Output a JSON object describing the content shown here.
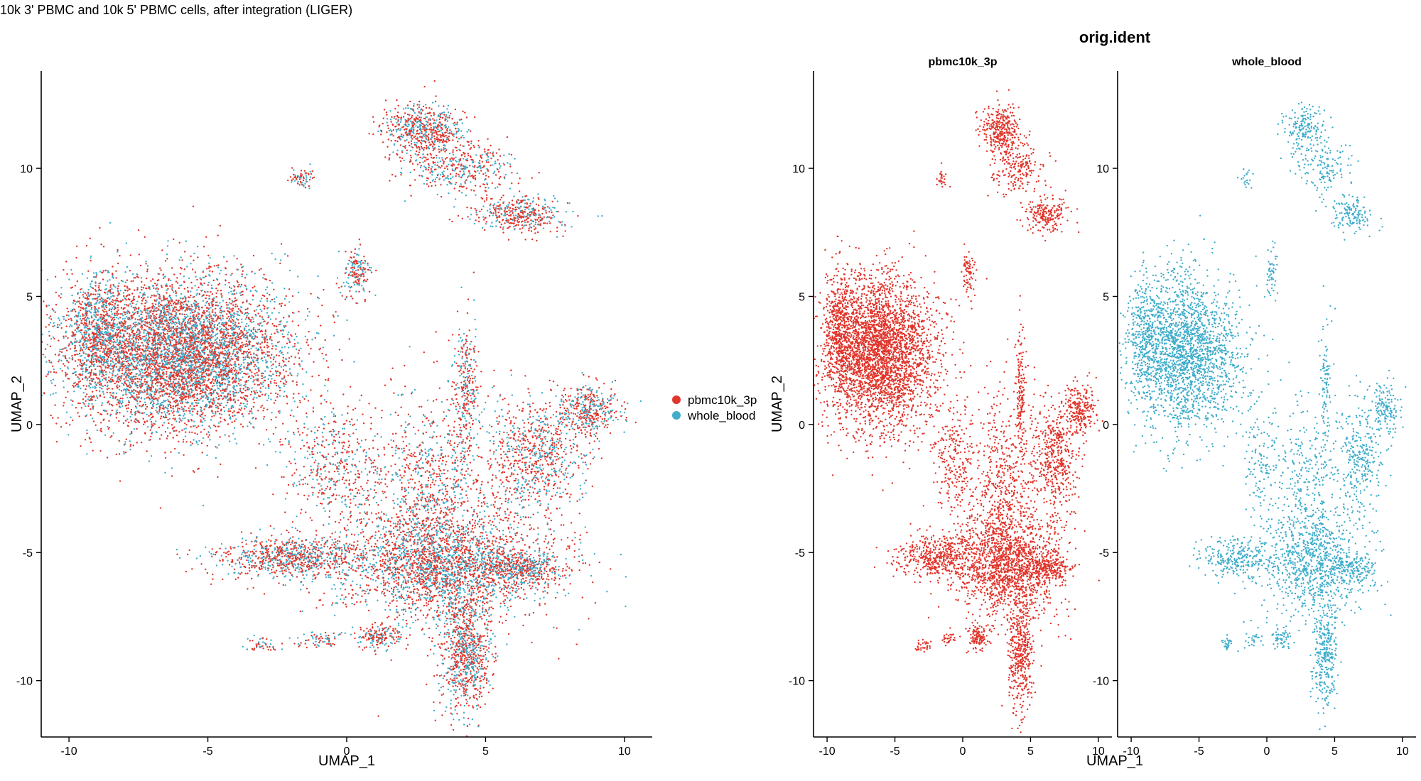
{
  "page": {
    "title": "10k 3' PBMC and 10k 5' PBMC cells, after integration (LIGER)"
  },
  "colors": {
    "pbmc10k_3p": "#E0352B",
    "whole_blood": "#3FADCB"
  },
  "chart_data": [
    {
      "type": "scatter",
      "panel": "combined",
      "title": "",
      "xlabel": "UMAP_1",
      "ylabel": "UMAP_2",
      "xlim": [
        -11,
        11
      ],
      "ylim": [
        -12.2,
        13.8
      ],
      "xticks": [
        -10,
        -5,
        0,
        5,
        10
      ],
      "yticks": [
        -10,
        -5,
        0,
        5,
        10
      ],
      "grid": false,
      "legend": {
        "position": "right",
        "entries": [
          {
            "name": "pbmc10k_3p",
            "color": "#E0352B"
          },
          {
            "name": "whole_blood",
            "color": "#3FADCB"
          }
        ]
      },
      "series": [
        {
          "name": "pbmc10k_3p",
          "color": "#E0352B",
          "point_count": 10000
        },
        {
          "name": "whole_blood",
          "color": "#3FADCB",
          "point_count": 6000
        }
      ],
      "clusters": [
        {
          "cx": -6.0,
          "cy": 2.8,
          "sx": 2.0,
          "sy": 1.5,
          "w": 0.3
        },
        {
          "cx": -9.0,
          "cy": 3.6,
          "sx": 0.55,
          "sy": 1.2,
          "w": 0.04
        },
        {
          "cx": 3.5,
          "cy": -5.5,
          "sx": 2.0,
          "sy": 1.0,
          "w": 0.12
        },
        {
          "cx": 3.0,
          "cy": -3.0,
          "sx": 1.2,
          "sy": 2.0,
          "w": 0.06
        },
        {
          "cx": -2.0,
          "cy": -5.2,
          "sx": 1.4,
          "sy": 0.4,
          "w": 0.04
        },
        {
          "cx": 6.3,
          "cy": -5.6,
          "sx": 0.8,
          "sy": 0.3,
          "w": 0.02
        },
        {
          "cx": 6.8,
          "cy": -1.3,
          "sx": 0.9,
          "sy": 1.1,
          "w": 0.04
        },
        {
          "cx": 8.7,
          "cy": 0.6,
          "sx": 0.55,
          "sy": 0.5,
          "w": 0.02
        },
        {
          "cx": 4.3,
          "cy": -9.0,
          "sx": 0.45,
          "sy": 1.1,
          "w": 0.04
        },
        {
          "cx": 1.2,
          "cy": -8.3,
          "sx": 0.4,
          "sy": 0.25,
          "w": 0.01
        },
        {
          "cx": -0.5,
          "cy": -1.5,
          "sx": 0.8,
          "sy": 1.2,
          "w": 0.02
        },
        {
          "cx": 4.3,
          "cy": 1.5,
          "sx": 0.2,
          "sy": 1.3,
          "w": 0.015
        },
        {
          "cx": 0.4,
          "cy": 5.9,
          "sx": 0.25,
          "sy": 0.45,
          "w": 0.008
        },
        {
          "cx": 2.8,
          "cy": 11.5,
          "sx": 0.75,
          "sy": 0.5,
          "w": 0.03
        },
        {
          "cx": 4.0,
          "cy": 10.0,
          "sx": 1.0,
          "sy": 0.5,
          "w": 0.02
        },
        {
          "cx": 6.2,
          "cy": 8.2,
          "sx": 0.8,
          "sy": 0.35,
          "w": 0.02
        },
        {
          "cx": -1.6,
          "cy": 9.6,
          "sx": 0.2,
          "sy": 0.2,
          "w": 0.003
        },
        {
          "cx": -3.0,
          "cy": -8.6,
          "sx": 0.3,
          "sy": 0.15,
          "w": 0.003
        },
        {
          "cx": -1.0,
          "cy": -8.4,
          "sx": 0.4,
          "sy": 0.15,
          "w": 0.003
        }
      ]
    },
    {
      "type": "scatter",
      "panel": "split",
      "header": "orig.ident",
      "xlabel": "UMAP_1",
      "ylabel": "UMAP_2",
      "xlim": [
        -11,
        11
      ],
      "ylim": [
        -12.2,
        13.8
      ],
      "xticks": [
        -10,
        -5,
        0,
        5,
        10
      ],
      "yticks": [
        -10,
        -5,
        0,
        5,
        10
      ],
      "grid": false,
      "facets": [
        {
          "title": "pbmc10k_3p",
          "color": "#E0352B",
          "point_count": 9000
        },
        {
          "title": "whole_blood",
          "color": "#3FADCB",
          "point_count": 5500
        }
      ]
    }
  ]
}
